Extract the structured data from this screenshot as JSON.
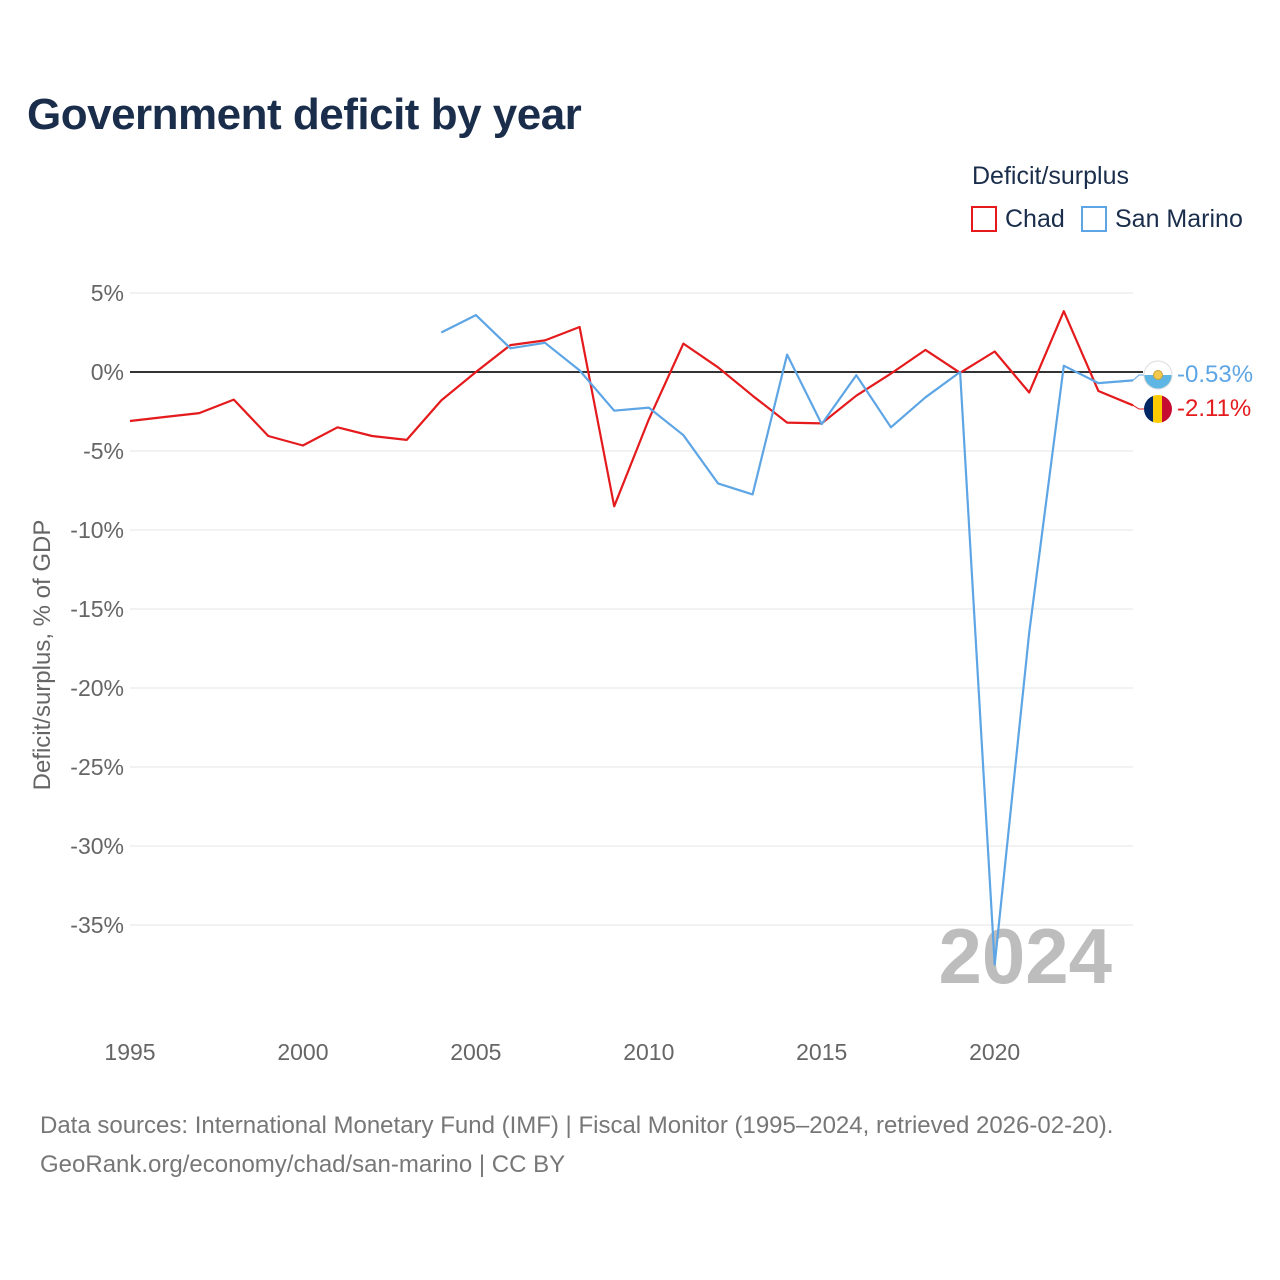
{
  "title": "Government deficit by year",
  "legend": {
    "title": "Deficit/surplus",
    "items": [
      {
        "label": "Chad",
        "color": "#e41a1c"
      },
      {
        "label": "San Marino",
        "color": "#5da5e5"
      }
    ]
  },
  "chart_data": {
    "type": "line",
    "ylabel": "Deficit/surplus, % of GDP",
    "xlabel": "",
    "xlim": [
      1995,
      2024
    ],
    "ylim": [
      -40,
      5
    ],
    "x_ticks": [
      1995,
      2000,
      2005,
      2010,
      2015,
      2020
    ],
    "x_tick_labels": [
      "1995",
      "2000",
      "2005",
      "2010",
      "2015",
      "2020"
    ],
    "y_ticks": [
      5,
      0,
      -5,
      -10,
      -15,
      -20,
      -25,
      -30,
      -35
    ],
    "y_tick_labels": [
      "5%",
      "0%",
      "-5%",
      "-10%",
      "-15%",
      "-20%",
      "-25%",
      "-30%",
      "-35%"
    ],
    "zero_line": true,
    "grid": true,
    "watermark_year": "2024",
    "series": [
      {
        "name": "Chad",
        "color": "#e41a1c",
        "end_label": "-2.11%",
        "flag": "chad-flag-icon",
        "points": [
          [
            1995,
            -3.1
          ],
          [
            1996,
            -2.85
          ],
          [
            1997,
            -2.6
          ],
          [
            1998,
            -1.75
          ],
          [
            1999,
            -4.05
          ],
          [
            2000,
            -4.65
          ],
          [
            2001,
            -3.5
          ],
          [
            2002,
            -4.05
          ],
          [
            2003,
            -4.3
          ],
          [
            2004,
            -1.8
          ],
          [
            2005,
            0.0
          ],
          [
            2006,
            1.7
          ],
          [
            2007,
            2.0
          ],
          [
            2008,
            2.85
          ],
          [
            2009,
            -8.5
          ],
          [
            2010,
            -3.0
          ],
          [
            2011,
            1.8
          ],
          [
            2012,
            0.3
          ],
          [
            2013,
            -1.5
          ],
          [
            2014,
            -3.2
          ],
          [
            2015,
            -3.25
          ],
          [
            2016,
            -1.5
          ],
          [
            2017,
            -0.1
          ],
          [
            2018,
            1.4
          ],
          [
            2019,
            -0.05
          ],
          [
            2020,
            1.3
          ],
          [
            2021,
            -1.3
          ],
          [
            2022,
            3.85
          ],
          [
            2023,
            -1.2
          ],
          [
            2024,
            -2.11
          ]
        ]
      },
      {
        "name": "San Marino",
        "color": "#5da5e5",
        "end_label": "-0.53%",
        "flag": "san-marino-flag-icon",
        "points": [
          [
            2004,
            2.5
          ],
          [
            2005,
            3.6
          ],
          [
            2006,
            1.5
          ],
          [
            2007,
            1.85
          ],
          [
            2008,
            0.1
          ],
          [
            2009,
            -2.45
          ],
          [
            2010,
            -2.25
          ],
          [
            2011,
            -4.0
          ],
          [
            2012,
            -7.05
          ],
          [
            2013,
            -7.75
          ],
          [
            2014,
            1.1
          ],
          [
            2015,
            -3.3
          ],
          [
            2016,
            -0.2
          ],
          [
            2017,
            -3.5
          ],
          [
            2018,
            -1.6
          ],
          [
            2019,
            0.0
          ],
          [
            2020,
            -37.5
          ],
          [
            2021,
            -16.5
          ],
          [
            2022,
            0.4
          ],
          [
            2023,
            -0.7
          ],
          [
            2024,
            -0.53
          ]
        ]
      }
    ]
  },
  "footer": {
    "line1": "Data sources: International Monetary Fund (IMF) | Fiscal Monitor (1995–2024, retrieved 2026-02-20).",
    "line2": "GeoRank.org/economy/chad/san-marino | CC BY"
  }
}
